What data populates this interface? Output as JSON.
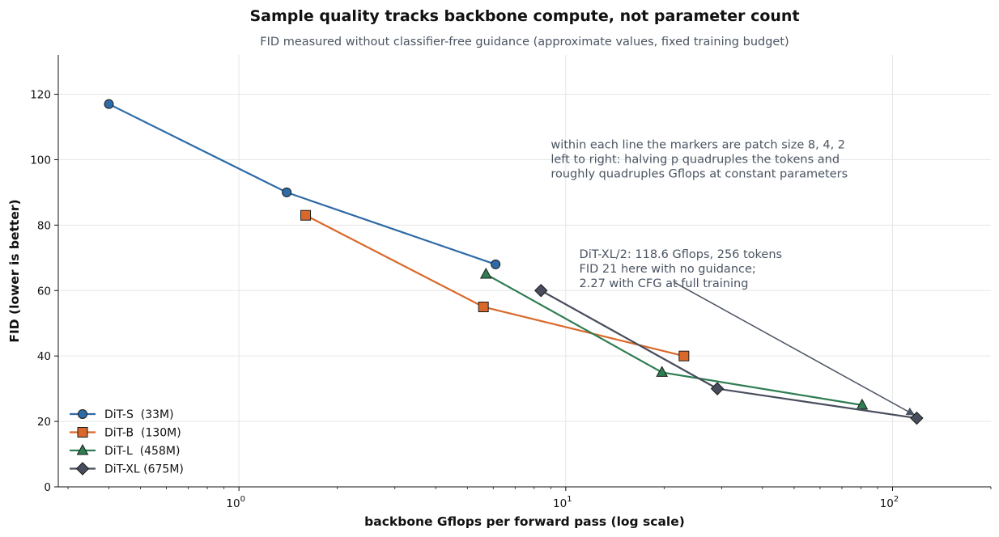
{
  "chart_data": {
    "type": "line",
    "title": "Sample quality tracks backbone compute, not parameter count",
    "subtitle": "FID measured without classifier-free guidance (approximate values, fixed training budget)",
    "xlabel": "backbone Gflops per forward pass (log scale)",
    "ylabel": "FID (lower is better)",
    "x_scale": "log",
    "xlim": [
      0.28,
      200
    ],
    "ylim": [
      0,
      132
    ],
    "x_ticks": [
      {
        "value": 1,
        "base": "10",
        "exp": "0"
      },
      {
        "value": 10,
        "base": "10",
        "exp": "1"
      },
      {
        "value": 100,
        "base": "10",
        "exp": "2"
      }
    ],
    "y_ticks": [
      0,
      20,
      40,
      60,
      80,
      100,
      120
    ],
    "grid": true,
    "legend_position": "bottom-left",
    "series": [
      {
        "name": "DiT-S  (33M)",
        "color": "#2e6aa6",
        "marker": "circle",
        "x": [
          0.4,
          1.4,
          6.1
        ],
        "y": [
          117,
          90,
          68
        ]
      },
      {
        "name": "DiT-B  (130M)",
        "color": "#d9692a",
        "marker": "square",
        "x": [
          1.6,
          5.6,
          23
        ],
        "y": [
          83,
          55,
          40
        ]
      },
      {
        "name": "DiT-L  (458M)",
        "color": "#2f7d52",
        "marker": "triangle",
        "x": [
          5.7,
          19.7,
          80.7
        ],
        "y": [
          65,
          35,
          25
        ]
      },
      {
        "name": "DiT-XL (675M)",
        "color": "#474d5c",
        "marker": "diamond",
        "x": [
          8.4,
          29.1,
          118.6
        ],
        "y": [
          60,
          30,
          21
        ]
      }
    ],
    "annotations": [
      {
        "id": "patch-note",
        "lines": [
          "within each line the markers are patch size 8, 4, 2",
          "left to right: halving p quadruples the tokens and",
          "roughly quadruples Gflops at constant parameters"
        ],
        "x": 9,
        "y": 103.5
      },
      {
        "id": "xl2-note",
        "lines": [
          "DiT-XL/2: 118.6 Gflops, 256 tokens",
          "FID 21 here with no guidance;",
          "2.27 with CFG at full training"
        ],
        "x": 11,
        "y": 70,
        "arrow_from": [
          21.5,
          62.5
        ],
        "arrow_to": [
          118.6,
          21
        ]
      }
    ]
  }
}
